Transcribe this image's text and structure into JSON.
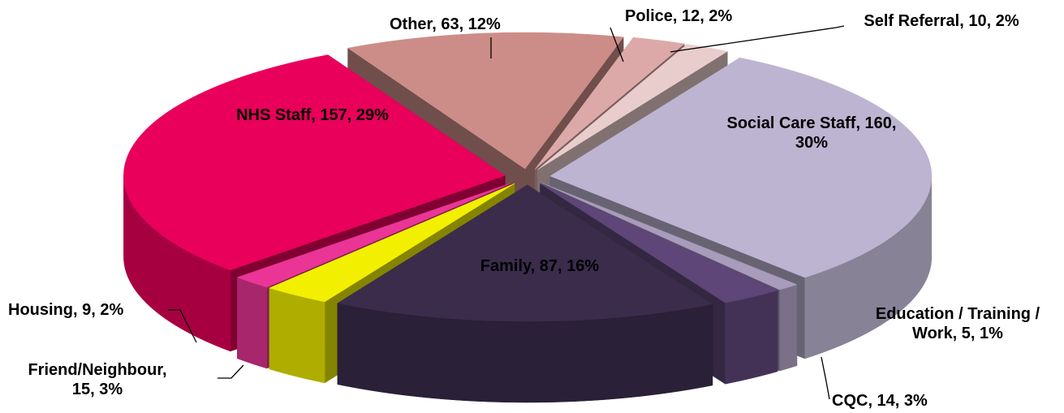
{
  "chart_data": {
    "type": "pie3d",
    "categories": [
      "Social Care Staff",
      "Education / Training / Work",
      "CQC",
      "Family",
      "Friend/Neighbour",
      "Housing",
      "NHS Staff",
      "Other",
      "Police",
      "Self Referral"
    ],
    "values": [
      160,
      5,
      14,
      87,
      15,
      9,
      157,
      63,
      12,
      10
    ],
    "value_labels": [
      "Social Care Staff, 160, 30%",
      "Education / Training / Work, 5, 1%",
      "CQC, 14, 3%",
      "Family, 87, 16%",
      "Friend/Neighbour, 15, 3%",
      "Housing, 9, 2%",
      "NHS Staff, 157, 29%",
      "Other, 63, 12%",
      "Police, 12, 2%",
      "Self Referral, 10, 2%"
    ],
    "colors": [
      "#bdb4d1",
      "#a99bbb",
      "#5e4678",
      "#3b2c4c",
      "#f2f000",
      "#ea3596",
      "#e8005a",
      "#cc8d88",
      "#dca9a8",
      "#e9cdcc"
    ]
  }
}
